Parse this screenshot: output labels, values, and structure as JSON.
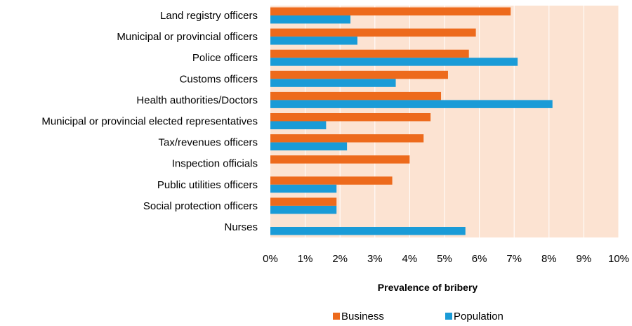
{
  "chart_data": {
    "type": "bar",
    "orientation": "horizontal",
    "categories": [
      "Land registry officers",
      "Municipal or provincial officers",
      "Police officers",
      "Customs officers",
      "Health authorities/Doctors",
      "Municipal or provincial elected representatives",
      "Tax/revenues officers",
      "Inspection officials",
      "Public utilities officers",
      "Social protection officers",
      "Nurses"
    ],
    "series": [
      {
        "name": "Business",
        "color": "#ED6A1C",
        "values": [
          6.9,
          5.9,
          5.7,
          5.1,
          4.9,
          4.6,
          4.4,
          4.0,
          3.5,
          1.9,
          null
        ]
      },
      {
        "name": "Population",
        "color": "#1A9BD7",
        "values": [
          2.3,
          2.5,
          7.1,
          3.6,
          8.1,
          1.6,
          2.2,
          null,
          1.9,
          1.9,
          5.6
        ]
      }
    ],
    "xlim": [
      0,
      10
    ],
    "x_ticks": [
      "0%",
      "1%",
      "2%",
      "3%",
      "4%",
      "5%",
      "6%",
      "7%",
      "8%",
      "9%",
      "10%"
    ],
    "xlabel": "Prevalence of bribery",
    "plot_background": "#FCE3D2",
    "grid": "vertical",
    "legend_position": "bottom"
  }
}
